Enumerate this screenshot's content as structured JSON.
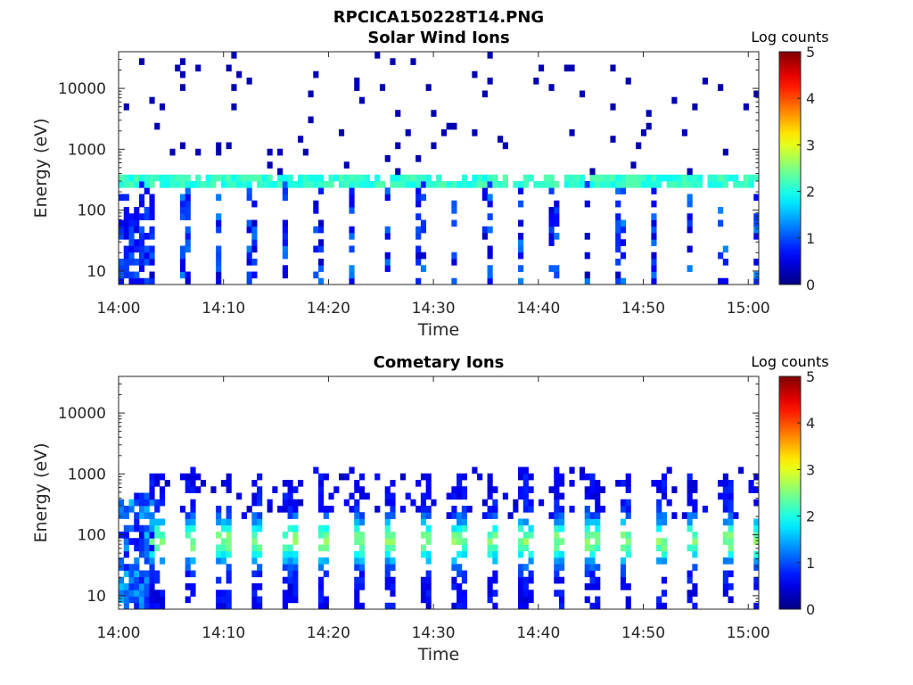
{
  "figure_title": "RPCICA150228T14.PNG",
  "chart_data": [
    {
      "type": "heatmap",
      "title": "Solar Wind Ions",
      "xlabel": "Time",
      "ylabel": "Energy (eV)",
      "x_ticks": [
        "14:00",
        "14:10",
        "14:20",
        "14:30",
        "14:40",
        "14:50",
        "15:00"
      ],
      "x_range_minutes": [
        0,
        61
      ],
      "y_scale": "log",
      "y_ticks": [
        10,
        100,
        1000,
        10000
      ],
      "y_range": [
        6,
        40000
      ],
      "colorbar": {
        "label": "Log counts",
        "range": [
          0,
          5
        ],
        "ticks": [
          0,
          1,
          2,
          3,
          4,
          5
        ],
        "colormap": "jet"
      },
      "features": [
        {
          "description": "Solar wind proton beam",
          "energy_eV": 300,
          "time_minutes": [
            0,
            61
          ],
          "log_counts": [
            1.5,
            2.3
          ]
        },
        {
          "description": "Low-energy vertical streaks",
          "energy_eV": [
            6,
            300
          ],
          "log_counts": [
            0.3,
            1.5
          ]
        }
      ]
    },
    {
      "type": "heatmap",
      "title": "Cometary Ions",
      "xlabel": "Time",
      "ylabel": "Energy (eV)",
      "x_ticks": [
        "14:00",
        "14:10",
        "14:20",
        "14:30",
        "14:40",
        "14:50",
        "15:00"
      ],
      "x_range_minutes": [
        0,
        61
      ],
      "y_scale": "log",
      "y_ticks": [
        10,
        100,
        1000,
        10000
      ],
      "y_range": [
        6,
        40000
      ],
      "colorbar": {
        "label": "Log counts",
        "range": [
          0,
          5
        ],
        "ticks": [
          0,
          1,
          2,
          3,
          4,
          5
        ],
        "colormap": "jet"
      },
      "features": [
        {
          "description": "Periodic cometary ion bursts",
          "energy_eV": [
            6,
            1000
          ],
          "period_minutes": 3.2,
          "log_counts": [
            0.5,
            2.5
          ]
        }
      ]
    }
  ]
}
